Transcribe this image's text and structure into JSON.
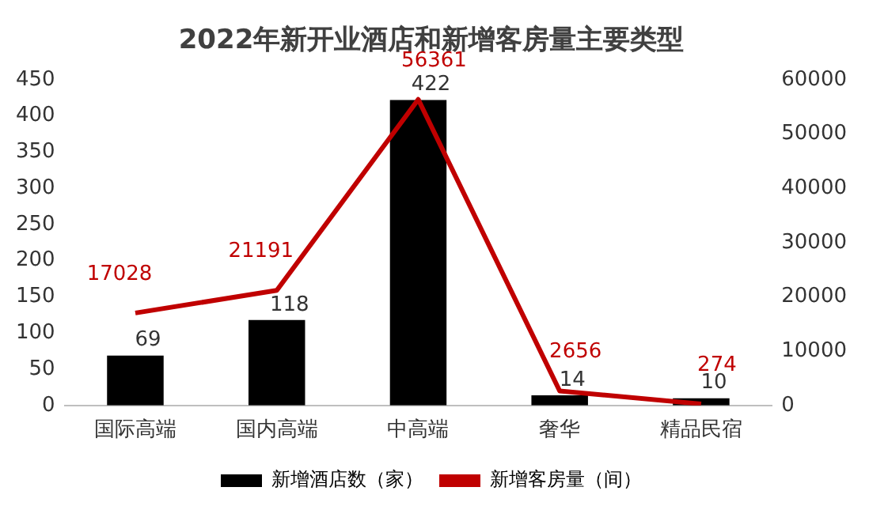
{
  "chart_data": {
    "type": "bar",
    "title": "2022年新开业酒店和新增客房量主要类型",
    "categories": [
      "国际高端",
      "国内高端",
      "中高端",
      "奢华",
      "精品民宿"
    ],
    "series": [
      {
        "name": "新增酒店数（家）",
        "color": "#000000",
        "values": [
          69,
          118,
          422,
          14,
          10
        ]
      },
      {
        "name": "新增客房量（间）",
        "type": "line",
        "axis": "y2",
        "color": "#c00000",
        "values": [
          17028,
          21191,
          56361,
          2656,
          274
        ]
      }
    ],
    "ylim": [
      0,
      450
    ],
    "yticks": [
      0,
      50,
      100,
      150,
      200,
      250,
      300,
      350,
      400,
      450
    ],
    "y2lim": [
      0,
      60000
    ],
    "y2ticks": [
      0,
      10000,
      20000,
      30000,
      40000,
      50000,
      60000
    ],
    "grid": false,
    "legend": "bottom",
    "data_labels": true,
    "marker": "none"
  }
}
